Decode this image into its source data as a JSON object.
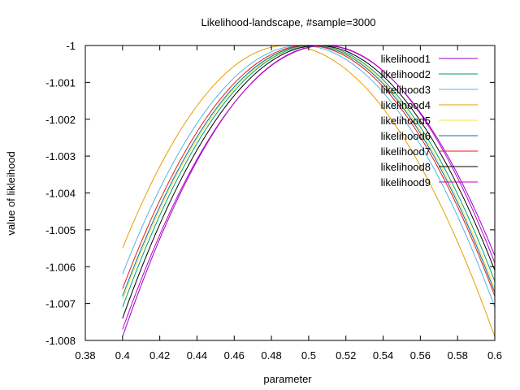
{
  "chart_data": {
    "type": "line",
    "title": "Likelihood-landscape, #sample=3000",
    "xlabel": "parameter",
    "ylabel": "value of likleihood",
    "xlim": [
      0.38,
      0.6
    ],
    "ylim": [
      -1.008,
      -1
    ],
    "xticks": [
      0.38,
      0.4,
      0.42,
      0.44,
      0.46,
      0.48,
      0.5,
      0.52,
      0.54,
      0.56,
      0.58,
      0.6
    ],
    "xtick_labels": [
      "0.38",
      "0.4",
      "0.42",
      "0.44",
      "0.46",
      "0.48",
      "0.5",
      "0.52",
      "0.54",
      "0.56",
      "0.58",
      "0.6"
    ],
    "yticks": [
      -1,
      -1.001,
      -1.002,
      -1.003,
      -1.004,
      -1.005,
      -1.006,
      -1.007,
      -1.008
    ],
    "ytick_labels": [
      "-1",
      "-1.001",
      "-1.002",
      "-1.003",
      "-1.004",
      "-1.005",
      "-1.006",
      "-1.007",
      "-1.008"
    ],
    "grid": false,
    "legend_position": "top-right",
    "x_range": [
      0.4,
      0.6
    ],
    "series": [
      {
        "name": "likelihood1",
        "color": "#9400d3",
        "peak_x": 0.508,
        "y_at_0_4": -1.0079,
        "y_at_0_6": -1.0057
      },
      {
        "name": "likelihood2",
        "color": "#009e73",
        "peak_x": 0.503,
        "y_at_0_4": -1.0071,
        "y_at_0_6": -1.0064
      },
      {
        "name": "likelihood3",
        "color": "#56b4e9",
        "peak_x": 0.496,
        "y_at_0_4": -1.0062,
        "y_at_0_6": -1.0071
      },
      {
        "name": "likelihood4",
        "color": "#e69f00",
        "peak_x": 0.488,
        "y_at_0_4": -1.0055,
        "y_at_0_6": -1.0079
      },
      {
        "name": "likelihood5",
        "color": "#f0e442",
        "peak_x": 0.502,
        "y_at_0_4": -1.0069,
        "y_at_0_6": -1.0066
      },
      {
        "name": "likelihood6",
        "color": "#0072b2",
        "peak_x": 0.501,
        "y_at_0_4": -1.0068,
        "y_at_0_6": -1.0067
      },
      {
        "name": "likelihood7",
        "color": "#e51e10",
        "peak_x": 0.499,
        "y_at_0_4": -1.0066,
        "y_at_0_6": -1.0068
      },
      {
        "name": "likelihood8",
        "color": "#000000",
        "peak_x": 0.505,
        "y_at_0_4": -1.0074,
        "y_at_0_6": -1.0061
      },
      {
        "name": "likelihood9",
        "color": "#c000c0",
        "peak_x": 0.509,
        "y_at_0_4": -1.0077,
        "y_at_0_6": -1.0059
      }
    ]
  }
}
